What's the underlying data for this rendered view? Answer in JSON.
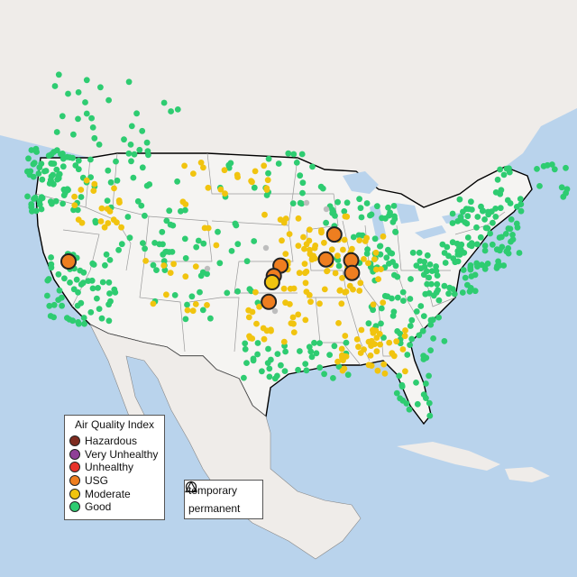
{
  "map": {
    "title": "",
    "colors": {
      "ocean": "#b9d3ec",
      "land": "#f0eeeb",
      "us_land": "#f4f3f1",
      "border": "#000000",
      "state_lines": "#999999"
    }
  },
  "legend_aqi": {
    "title": "Air Quality Index",
    "items": [
      {
        "label": "Hazardous",
        "color": "#7e2b1f"
      },
      {
        "label": "Very Unhealthy",
        "color": "#8f3f97"
      },
      {
        "label": "Unhealthy",
        "color": "#e8322b"
      },
      {
        "label": "USG",
        "color": "#ee7e20"
      },
      {
        "label": "Moderate",
        "color": "#f1c40f"
      },
      {
        "label": "Good",
        "color": "#2ecc71"
      }
    ]
  },
  "legend_shape": {
    "items": [
      {
        "label": "temporary",
        "icon": "circle-icon"
      },
      {
        "label": "permanent",
        "icon": "triangle-icon"
      }
    ]
  },
  "monitors": {
    "usg": [
      {
        "lon": -119.8,
        "lat": 39.5
      },
      {
        "lon": -94.6,
        "lat": 39.1
      },
      {
        "lon": -95.4,
        "lat": 38.1
      },
      {
        "lon": -96.0,
        "lat": 35.6
      },
      {
        "lon": -88.2,
        "lat": 42.1
      },
      {
        "lon": -89.2,
        "lat": 39.7
      },
      {
        "lon": -86.2,
        "lat": 39.6
      },
      {
        "lon": -86.1,
        "lat": 38.4
      }
    ],
    "moderate_large": [
      {
        "lon": -95.6,
        "lat": 37.5
      }
    ]
  }
}
